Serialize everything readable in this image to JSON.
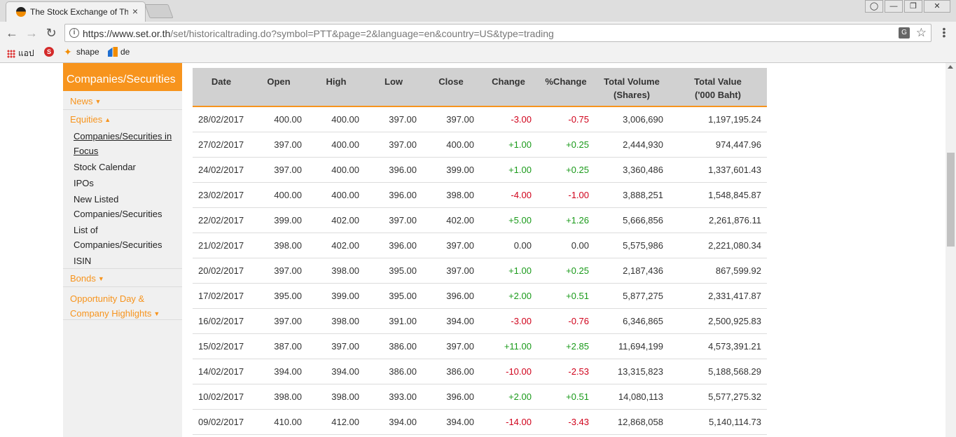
{
  "browser": {
    "tab_title": "The Stock Exchange of Thai",
    "tab_close": "×",
    "url_host": "https://www.set.or.th",
    "url_path": "/set/historicaltrading.do?symbol=PTT&page=2&language=en&country=US&type=trading",
    "bookmarks": [
      "แอป",
      "shape",
      "de"
    ]
  },
  "sidebar": {
    "header": "Companies/Securities",
    "news": "News",
    "equities": "Equities",
    "equities_items": [
      "Companies/Securities in Focus",
      "Stock Calendar",
      "IPOs",
      "New Listed Companies/Securities",
      "List of Companies/Securities",
      "ISIN"
    ],
    "bonds": "Bonds",
    "opportunity": "Opportunity Day & Company Highlights"
  },
  "table": {
    "headers": [
      "Date",
      "Open",
      "High",
      "Low",
      "Close",
      "Change",
      "%Change",
      "Total Volume\n(Shares)",
      "Total Value\n('000 Baht)"
    ],
    "header_lines": {
      "volume_1": "Total Volume",
      "volume_2": "(Shares)",
      "value_1": "Total Value",
      "value_2": "('000 Baht)"
    },
    "rows": [
      [
        "28/02/2017",
        "400.00",
        "400.00",
        "397.00",
        "397.00",
        "-3.00",
        "-0.75",
        "3,006,690",
        "1,197,195.24"
      ],
      [
        "27/02/2017",
        "397.00",
        "400.00",
        "397.00",
        "400.00",
        "+1.00",
        "+0.25",
        "2,444,930",
        "974,447.96"
      ],
      [
        "24/02/2017",
        "397.00",
        "400.00",
        "396.00",
        "399.00",
        "+1.00",
        "+0.25",
        "3,360,486",
        "1,337,601.43"
      ],
      [
        "23/02/2017",
        "400.00",
        "400.00",
        "396.00",
        "398.00",
        "-4.00",
        "-1.00",
        "3,888,251",
        "1,548,845.87"
      ],
      [
        "22/02/2017",
        "399.00",
        "402.00",
        "397.00",
        "402.00",
        "+5.00",
        "+1.26",
        "5,666,856",
        "2,261,876.11"
      ],
      [
        "21/02/2017",
        "398.00",
        "402.00",
        "396.00",
        "397.00",
        "0.00",
        "0.00",
        "5,575,986",
        "2,221,080.34"
      ],
      [
        "20/02/2017",
        "397.00",
        "398.00",
        "395.00",
        "397.00",
        "+1.00",
        "+0.25",
        "2,187,436",
        "867,599.92"
      ],
      [
        "17/02/2017",
        "395.00",
        "399.00",
        "395.00",
        "396.00",
        "+2.00",
        "+0.51",
        "5,877,275",
        "2,331,417.87"
      ],
      [
        "16/02/2017",
        "397.00",
        "398.00",
        "391.00",
        "394.00",
        "-3.00",
        "-0.76",
        "6,346,865",
        "2,500,925.83"
      ],
      [
        "15/02/2017",
        "387.00",
        "397.00",
        "386.00",
        "397.00",
        "+11.00",
        "+2.85",
        "11,694,199",
        "4,573,391.21"
      ],
      [
        "14/02/2017",
        "394.00",
        "394.00",
        "386.00",
        "386.00",
        "-10.00",
        "-2.53",
        "13,315,823",
        "5,188,568.29"
      ],
      [
        "10/02/2017",
        "398.00",
        "398.00",
        "393.00",
        "396.00",
        "+2.00",
        "+0.51",
        "14,080,113",
        "5,577,275.32"
      ],
      [
        "09/02/2017",
        "410.00",
        "412.00",
        "394.00",
        "394.00",
        "-14.00",
        "-3.43",
        "12,868,058",
        "5,140,114.73"
      ]
    ]
  },
  "colors": {
    "accent": "#f7941d",
    "positive": "#1a9a1a",
    "negative": "#d0021b",
    "header_bg": "#d1d1d1"
  }
}
